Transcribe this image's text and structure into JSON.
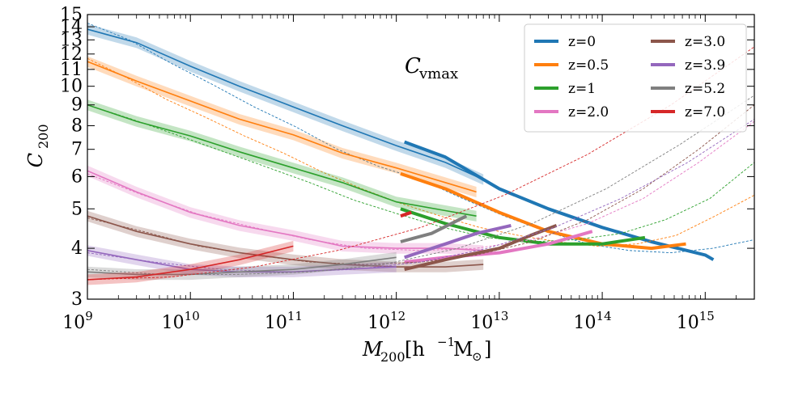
{
  "chart_data": {
    "type": "line",
    "annotation": {
      "main": "C",
      "sub": "vmax"
    },
    "xlabel": {
      "main": "M",
      "sub": "200",
      "unit_open": " [h",
      "unit_sup": "−1",
      "unit_close": "M",
      "unit_sym": "⊙",
      "unit_end": "]"
    },
    "ylabel": {
      "main": "C",
      "sub": "200"
    },
    "xscale": "log",
    "yscale": "log",
    "xlim": [
      1000000000.0,
      3000000000000000.0
    ],
    "ylim": [
      3,
      15
    ],
    "x_ticks": [
      {
        "base": "10",
        "exp": "9",
        "value": 1000000000.0
      },
      {
        "base": "10",
        "exp": "10",
        "value": 10000000000.0
      },
      {
        "base": "10",
        "exp": "11",
        "value": 100000000000.0
      },
      {
        "base": "10",
        "exp": "12",
        "value": 1000000000000.0
      },
      {
        "base": "10",
        "exp": "13",
        "value": 10000000000000.0
      },
      {
        "base": "10",
        "exp": "14",
        "value": 100000000000000.0
      },
      {
        "base": "10",
        "exp": "15",
        "value": 1000000000000000.0
      }
    ],
    "y_ticks": [
      "3",
      "4",
      "5",
      "6",
      "7",
      "8",
      "9",
      "10",
      "11",
      "12",
      "13",
      "14",
      "15"
    ],
    "legend_position": "top-right",
    "series": [
      {
        "name": "z=0",
        "color": "#1f77b4",
        "x": [
          1000000000.0,
          3000000000.0,
          10000000000.0,
          30000000000.0,
          100000000000.0,
          300000000000.0,
          1000000000000.0,
          3000000000000.0,
          7000000000000.0
        ],
        "y": [
          13.8,
          12.8,
          11.2,
          10.0,
          8.9,
          8.0,
          7.15,
          6.5,
          5.9
        ],
        "fit": [
          14.3,
          13.0,
          11.4,
          10.1,
          8.9,
          7.95,
          7.0,
          6.35,
          5.9,
          5.3,
          4.8,
          4.4,
          4.1,
          3.95,
          3.9,
          4.0,
          4.2
        ],
        "bold_x": [
          1200000000000.0,
          3000000000000.0,
          10000000000000.0,
          30000000000000.0,
          100000000000000.0,
          300000000000000.0,
          1000000000000000.0,
          1200000000000000.0
        ],
        "bold_y": [
          7.3,
          6.7,
          5.6,
          5.0,
          4.5,
          4.15,
          3.85,
          3.75
        ]
      },
      {
        "name": "z=0.5",
        "color": "#ff7f0e",
        "x": [
          1000000000.0,
          3000000000.0,
          10000000000.0,
          30000000000.0,
          100000000000.0,
          300000000000.0,
          1000000000000.0,
          3000000000000.0,
          6000000000000.0
        ],
        "y": [
          11.5,
          10.3,
          9.2,
          8.3,
          7.6,
          6.85,
          6.3,
          5.8,
          5.5
        ],
        "fit": [
          11.7,
          10.5,
          9.3,
          8.4,
          7.55,
          6.85,
          6.15,
          5.6,
          5.15,
          4.8,
          4.5,
          4.3,
          4.15,
          4.05,
          4.1,
          4.3,
          4.8,
          5.4
        ],
        "bold_x": [
          1100000000000.0,
          3000000000000.0,
          10000000000000.0,
          30000000000000.0,
          100000000000000.0,
          300000000000000.0,
          650000000000000.0
        ],
        "bold_y": [
          6.1,
          5.6,
          4.9,
          4.4,
          4.1,
          4.0,
          4.1
        ]
      },
      {
        "name": "z=1",
        "color": "#2ca02c",
        "x": [
          1000000000.0,
          3000000000.0,
          10000000000.0,
          30000000000.0,
          100000000000.0,
          300000000000.0,
          1000000000000.0,
          3000000000000.0,
          6000000000000.0
        ],
        "y": [
          9.0,
          8.2,
          7.55,
          6.9,
          6.3,
          5.8,
          5.2,
          4.95,
          4.8
        ],
        "fit": [
          9.0,
          8.3,
          7.6,
          6.95,
          6.35,
          5.8,
          5.25,
          4.85,
          4.5,
          4.25,
          4.15,
          4.2,
          4.35,
          4.7,
          5.3,
          6.5
        ],
        "bold_x": [
          1100000000000.0,
          3000000000000.0,
          10000000000000.0,
          30000000000000.0,
          100000000000000.0,
          260000000000000.0
        ],
        "bold_y": [
          5.0,
          4.6,
          4.25,
          4.1,
          4.1,
          4.25
        ]
      },
      {
        "name": "z=2.0",
        "color": "#e377c2",
        "x": [
          1000000000.0,
          3000000000.0,
          10000000000.0,
          30000000000.0,
          100000000000.0,
          300000000000.0,
          1000000000000.0,
          3000000000000.0,
          7000000000000.0
        ],
        "y": [
          6.2,
          5.5,
          4.9,
          4.55,
          4.3,
          4.05,
          4.0,
          4.0,
          3.95
        ],
        "fit": [
          6.1,
          5.4,
          4.85,
          4.5,
          4.2,
          4.0,
          3.95,
          4.0,
          4.2,
          4.6,
          5.3,
          6.5,
          8.2
        ],
        "bold_x": [
          1200000000000.0,
          3000000000000.0,
          10000000000000.0,
          30000000000000.0,
          80000000000000.0
        ],
        "bold_y": [
          3.7,
          3.8,
          3.9,
          4.1,
          4.4
        ]
      },
      {
        "name": "z=3.0",
        "color": "#8c564b",
        "x": [
          1000000000.0,
          3000000000.0,
          10000000000.0,
          30000000000.0,
          100000000000.0,
          300000000000.0,
          1000000000000.0,
          3000000000000.0,
          7000000000000.0
        ],
        "y": [
          4.8,
          4.4,
          4.1,
          3.9,
          3.75,
          3.65,
          3.6,
          3.6,
          3.65
        ],
        "fit": [
          4.75,
          4.4,
          4.05,
          3.85,
          3.7,
          3.65,
          3.7,
          3.85,
          4.15,
          4.7,
          5.6,
          7.0,
          9.0
        ],
        "bold_x": [
          1200000000000.0,
          3000000000000.0,
          10000000000000.0,
          20000000000000.0,
          36000000000000.0
        ],
        "bold_y": [
          3.55,
          3.75,
          4.0,
          4.3,
          4.55
        ]
      },
      {
        "name": "z=3.9",
        "color": "#9467bd",
        "x": [
          1000000000.0,
          3000000000.0,
          10000000000.0,
          30000000000.0,
          100000000000.0,
          300000000000.0,
          1000000000000.0
        ],
        "y": [
          3.95,
          3.75,
          3.55,
          3.5,
          3.5,
          3.55,
          3.6
        ],
        "fit": [
          3.9,
          3.7,
          3.55,
          3.5,
          3.55,
          3.7,
          4.0,
          4.5,
          5.3,
          6.5,
          8.3
        ],
        "bold_x": [
          1200000000000.0,
          3000000000000.0,
          6000000000000.0,
          13000000000000.0
        ],
        "bold_y": [
          3.8,
          4.1,
          4.35,
          4.55
        ]
      },
      {
        "name": "z=5.2",
        "color": "#7f7f7f",
        "x": [
          1000000000.0,
          3000000000.0,
          10000000000.0,
          30000000000.0,
          100000000000.0,
          300000000000.0,
          1000000000000.0
        ],
        "y": [
          3.5,
          3.45,
          3.45,
          3.5,
          3.55,
          3.65,
          3.8
        ],
        "fit": [
          3.55,
          3.45,
          3.45,
          3.5,
          3.65,
          4.0,
          4.6,
          5.6,
          7.2,
          9.5
        ],
        "bold_x": [
          1100000000000.0,
          2200000000000.0,
          4800000000000.0
        ],
        "bold_y": [
          4.15,
          4.35,
          4.8
        ]
      },
      {
        "name": "z=7.0",
        "color": "#d62728",
        "x": [
          1000000000.0,
          3000000000.0,
          10000000000.0,
          30000000000.0,
          100000000000.0
        ],
        "y": [
          3.35,
          3.4,
          3.55,
          3.75,
          4.05
        ],
        "fit": [
          3.35,
          3.4,
          3.6,
          3.95,
          4.5,
          5.4,
          6.8,
          9.0,
          12.5
        ],
        "bold_x": [
          1100000000000.0,
          1400000000000.0
        ],
        "bold_y": [
          4.8,
          4.9
        ]
      }
    ],
    "grid": false
  }
}
